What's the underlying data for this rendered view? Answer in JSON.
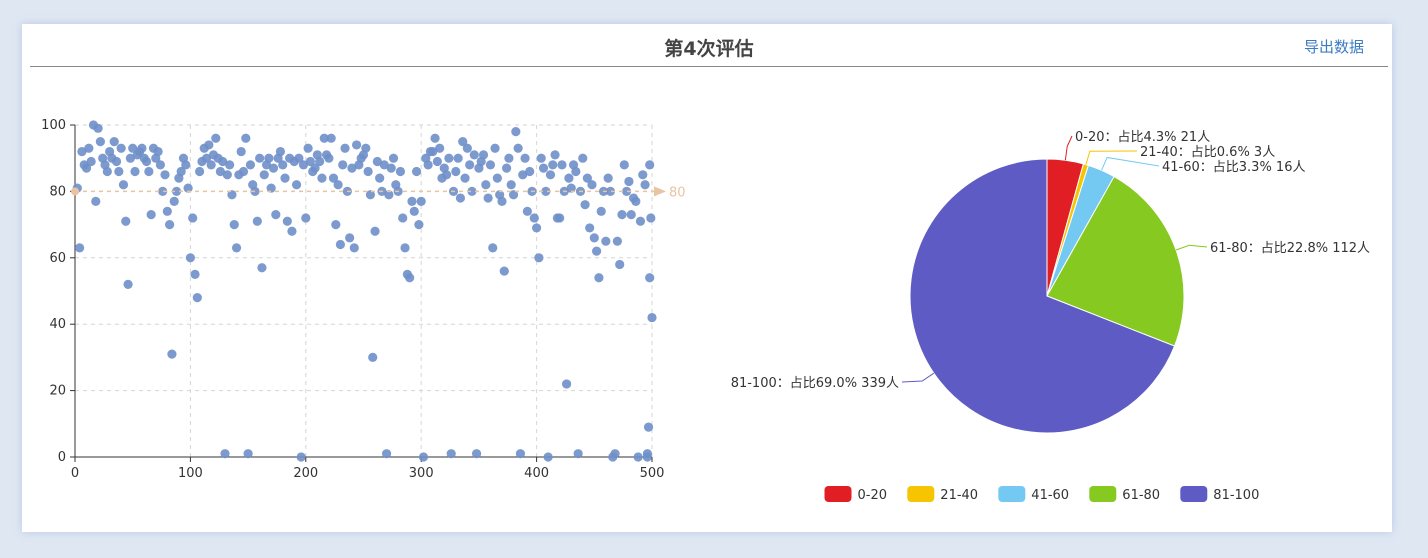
{
  "header": {
    "title": "第4次评估",
    "export_label": "导出数据"
  },
  "colors": {
    "scatter_point": "#6f8fc9",
    "mark_line": "#e8c4a0",
    "pie": [
      "#e01e24",
      "#f6c400",
      "#74c9f2",
      "#86c920",
      "#5f5bc4"
    ]
  },
  "chart_data": [
    {
      "type": "scatter",
      "xlim": [
        0,
        500
      ],
      "ylim": [
        0,
        100
      ],
      "x_ticks": [
        0,
        100,
        200,
        300,
        400,
        500
      ],
      "y_ticks": [
        0,
        20,
        40,
        60,
        80,
        100
      ],
      "grid": true,
      "mark_line": {
        "value": 80,
        "label": "80"
      },
      "points": [
        [
          2,
          81
        ],
        [
          4,
          63
        ],
        [
          6,
          92
        ],
        [
          8,
          88
        ],
        [
          10,
          87
        ],
        [
          12,
          93
        ],
        [
          14,
          89
        ],
        [
          16,
          100
        ],
        [
          18,
          77
        ],
        [
          20,
          99
        ],
        [
          22,
          95
        ],
        [
          24,
          90
        ],
        [
          26,
          88
        ],
        [
          28,
          86
        ],
        [
          30,
          92
        ],
        [
          32,
          90
        ],
        [
          34,
          95
        ],
        [
          36,
          89
        ],
        [
          38,
          86
        ],
        [
          40,
          93
        ],
        [
          42,
          82
        ],
        [
          44,
          71
        ],
        [
          46,
          52
        ],
        [
          48,
          90
        ],
        [
          50,
          93
        ],
        [
          52,
          86
        ],
        [
          54,
          91
        ],
        [
          56,
          92
        ],
        [
          58,
          93
        ],
        [
          60,
          90
        ],
        [
          62,
          89
        ],
        [
          64,
          86
        ],
        [
          66,
          73
        ],
        [
          68,
          93
        ],
        [
          70,
          90
        ],
        [
          72,
          92
        ],
        [
          74,
          88
        ],
        [
          76,
          80
        ],
        [
          78,
          85
        ],
        [
          80,
          74
        ],
        [
          82,
          70
        ],
        [
          84,
          31
        ],
        [
          86,
          77
        ],
        [
          88,
          80
        ],
        [
          90,
          84
        ],
        [
          92,
          86
        ],
        [
          94,
          90
        ],
        [
          96,
          88
        ],
        [
          98,
          81
        ],
        [
          100,
          60
        ],
        [
          102,
          72
        ],
        [
          104,
          55
        ],
        [
          106,
          48
        ],
        [
          108,
          86
        ],
        [
          110,
          89
        ],
        [
          112,
          93
        ],
        [
          114,
          90
        ],
        [
          116,
          94
        ],
        [
          118,
          88
        ],
        [
          120,
          91
        ],
        [
          122,
          96
        ],
        [
          124,
          90
        ],
        [
          126,
          86
        ],
        [
          128,
          89
        ],
        [
          130,
          1
        ],
        [
          132,
          85
        ],
        [
          134,
          88
        ],
        [
          136,
          79
        ],
        [
          138,
          70
        ],
        [
          140,
          63
        ],
        [
          142,
          85
        ],
        [
          144,
          92
        ],
        [
          146,
          86
        ],
        [
          148,
          96
        ],
        [
          150,
          1
        ],
        [
          152,
          88
        ],
        [
          154,
          82
        ],
        [
          156,
          80
        ],
        [
          158,
          71
        ],
        [
          160,
          90
        ],
        [
          162,
          57
        ],
        [
          164,
          85
        ],
        [
          166,
          88
        ],
        [
          168,
          90
        ],
        [
          170,
          81
        ],
        [
          172,
          87
        ],
        [
          174,
          73
        ],
        [
          176,
          90
        ],
        [
          178,
          92
        ],
        [
          180,
          88
        ],
        [
          182,
          84
        ],
        [
          184,
          71
        ],
        [
          186,
          90
        ],
        [
          188,
          68
        ],
        [
          190,
          89
        ],
        [
          192,
          82
        ],
        [
          194,
          90
        ],
        [
          196,
          0
        ],
        [
          198,
          88
        ],
        [
          200,
          72
        ],
        [
          202,
          93
        ],
        [
          204,
          89
        ],
        [
          206,
          86
        ],
        [
          208,
          87
        ],
        [
          210,
          91
        ],
        [
          212,
          89
        ],
        [
          214,
          84
        ],
        [
          216,
          96
        ],
        [
          218,
          91
        ],
        [
          220,
          90
        ],
        [
          222,
          96
        ],
        [
          224,
          84
        ],
        [
          226,
          70
        ],
        [
          228,
          82
        ],
        [
          230,
          64
        ],
        [
          232,
          88
        ],
        [
          234,
          93
        ],
        [
          236,
          80
        ],
        [
          238,
          66
        ],
        [
          240,
          87
        ],
        [
          242,
          63
        ],
        [
          244,
          94
        ],
        [
          246,
          88
        ],
        [
          248,
          90
        ],
        [
          250,
          91
        ],
        [
          252,
          93
        ],
        [
          254,
          86
        ],
        [
          256,
          79
        ],
        [
          258,
          30
        ],
        [
          260,
          68
        ],
        [
          262,
          89
        ],
        [
          264,
          84
        ],
        [
          266,
          80
        ],
        [
          268,
          88
        ],
        [
          270,
          1
        ],
        [
          272,
          79
        ],
        [
          274,
          87
        ],
        [
          276,
          90
        ],
        [
          278,
          82
        ],
        [
          280,
          80
        ],
        [
          282,
          86
        ],
        [
          284,
          72
        ],
        [
          286,
          63
        ],
        [
          288,
          55
        ],
        [
          290,
          54
        ],
        [
          292,
          77
        ],
        [
          294,
          74
        ],
        [
          296,
          86
        ],
        [
          298,
          70
        ],
        [
          300,
          77
        ],
        [
          302,
          0
        ],
        [
          304,
          90
        ],
        [
          306,
          88
        ],
        [
          308,
          92
        ],
        [
          310,
          92
        ],
        [
          312,
          96
        ],
        [
          314,
          89
        ],
        [
          316,
          93
        ],
        [
          318,
          84
        ],
        [
          320,
          87
        ],
        [
          322,
          85
        ],
        [
          324,
          90
        ],
        [
          326,
          1
        ],
        [
          328,
          80
        ],
        [
          330,
          86
        ],
        [
          332,
          90
        ],
        [
          334,
          78
        ],
        [
          336,
          95
        ],
        [
          338,
          84
        ],
        [
          340,
          93
        ],
        [
          342,
          88
        ],
        [
          344,
          80
        ],
        [
          346,
          91
        ],
        [
          348,
          1
        ],
        [
          350,
          87
        ],
        [
          352,
          89
        ],
        [
          354,
          91
        ],
        [
          356,
          82
        ],
        [
          358,
          78
        ],
        [
          360,
          88
        ],
        [
          362,
          63
        ],
        [
          364,
          93
        ],
        [
          366,
          84
        ],
        [
          368,
          79
        ],
        [
          370,
          77
        ],
        [
          372,
          56
        ],
        [
          374,
          87
        ],
        [
          376,
          90
        ],
        [
          378,
          82
        ],
        [
          380,
          79
        ],
        [
          382,
          98
        ],
        [
          384,
          93
        ],
        [
          386,
          1
        ],
        [
          388,
          85
        ],
        [
          390,
          90
        ],
        [
          392,
          74
        ],
        [
          394,
          86
        ],
        [
          396,
          80
        ],
        [
          398,
          72
        ],
        [
          400,
          69
        ],
        [
          402,
          60
        ],
        [
          404,
          90
        ],
        [
          406,
          87
        ],
        [
          408,
          80
        ],
        [
          410,
          0
        ],
        [
          412,
          85
        ],
        [
          414,
          88
        ],
        [
          416,
          91
        ],
        [
          418,
          72
        ],
        [
          420,
          72
        ],
        [
          422,
          88
        ],
        [
          424,
          80
        ],
        [
          426,
          22
        ],
        [
          428,
          84
        ],
        [
          430,
          81
        ],
        [
          432,
          88
        ],
        [
          434,
          86
        ],
        [
          436,
          1
        ],
        [
          438,
          80
        ],
        [
          440,
          90
        ],
        [
          442,
          76
        ],
        [
          444,
          84
        ],
        [
          446,
          69
        ],
        [
          448,
          82
        ],
        [
          450,
          66
        ],
        [
          452,
          62
        ],
        [
          454,
          54
        ],
        [
          456,
          74
        ],
        [
          458,
          80
        ],
        [
          460,
          65
        ],
        [
          462,
          84
        ],
        [
          464,
          80
        ],
        [
          466,
          0
        ],
        [
          468,
          1
        ],
        [
          470,
          65
        ],
        [
          472,
          58
        ],
        [
          474,
          73
        ],
        [
          476,
          88
        ],
        [
          478,
          80
        ],
        [
          480,
          83
        ],
        [
          482,
          73
        ],
        [
          484,
          78
        ],
        [
          486,
          77
        ],
        [
          488,
          0
        ],
        [
          490,
          71
        ],
        [
          492,
          85
        ],
        [
          494,
          82
        ],
        [
          496,
          0
        ],
        [
          498,
          88
        ],
        [
          499,
          72
        ],
        [
          500,
          42
        ],
        [
          498,
          54
        ],
        [
          497,
          9
        ],
        [
          496,
          1
        ]
      ]
    },
    {
      "type": "pie",
      "slices": [
        {
          "name": "0-20",
          "label": "0-20：占比4.3%  21人",
          "value": 21
        },
        {
          "name": "21-40",
          "label": "21-40：占比0.6%  3人",
          "value": 3
        },
        {
          "name": "41-60",
          "label": "41-60：占比3.3%  16人",
          "value": 16
        },
        {
          "name": "61-80",
          "label": "61-80：占比22.8%  112人",
          "value": 112
        },
        {
          "name": "81-100",
          "label": "81-100：占比69.0%  339人",
          "value": 339
        }
      ],
      "legend": {
        "placement": "bottom",
        "items": [
          "0-20",
          "21-40",
          "41-60",
          "61-80",
          "81-100"
        ]
      }
    }
  ]
}
